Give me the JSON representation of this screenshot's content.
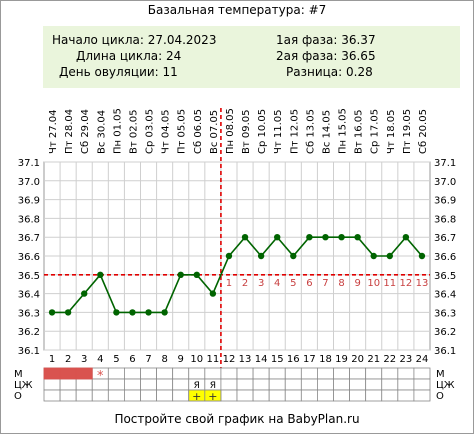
{
  "title": "Базальная температура: #7",
  "summary": {
    "cycle_start": "Начало цикла: 27.04.2023",
    "cycle_length": "Длина цикла: 24",
    "ovulation_day": "День овуляции: 11",
    "phase1": "1ая фаза: 36.37",
    "phase2": "2ая фаза: 36.65",
    "difference": "Разница: 0.28"
  },
  "footer": "Постройте свой график на BabyPlan.ru",
  "row_labels": {
    "m": "М",
    "cm": "ЦЖ",
    "o": "О"
  },
  "colors": {
    "line": "#006400",
    "cover_line": "#e00000",
    "menses": "#d9534f",
    "luteal_numbers": "#c84040",
    "info_bg": "#eaf5dc",
    "o_marks": "#ffff00"
  },
  "chart_data": {
    "type": "line",
    "ylim": [
      36.1,
      37.1
    ],
    "y_ticks": [
      "37.1",
      "37.0",
      "36.9",
      "36.8",
      "36.7",
      "36.6",
      "36.5",
      "36.4",
      "36.3",
      "36.2",
      "36.1"
    ],
    "x": [
      1,
      2,
      3,
      4,
      5,
      6,
      7,
      8,
      9,
      10,
      11,
      12,
      13,
      14,
      15,
      16,
      17,
      18,
      19,
      20,
      21,
      22,
      23,
      24
    ],
    "dates": [
      "Чт 27.04",
      "Пт 28.04",
      "Сб 29.04",
      "Вс 30.04",
      "Пн 01.05",
      "Вт 02.05",
      "Ср 03.05",
      "Чт 04.05",
      "Пт 05.05",
      "Сб 06.05",
      "Вс 07.05",
      "Пн 08.05",
      "Вт 09.05",
      "Ср 10.05",
      "Чт 11.05",
      "Пт 12.05",
      "Сб 13.05",
      "Вс 14.05",
      "Пн 15.05",
      "Вт 16.05",
      "Ср 17.05",
      "Чт 18.05",
      "Пт 19.05",
      "Сб 20.05"
    ],
    "series": [
      {
        "values": [
          36.3,
          36.3,
          36.4,
          36.5,
          36.3,
          36.3,
          36.3,
          36.3,
          36.5,
          36.5,
          36.4,
          36.6,
          36.7,
          36.6,
          36.7,
          36.6,
          36.7,
          36.7,
          36.7,
          36.7,
          36.6,
          36.6,
          36.7,
          36.6
        ]
      }
    ],
    "cover_line": 36.5,
    "ovulation_day": 11,
    "luteal_day_numbers": [
      "1",
      "2",
      "3",
      "4",
      "5",
      "6",
      "7",
      "8",
      "9",
      "10",
      "11",
      "12",
      "13"
    ],
    "menstruation_days": [
      1,
      2,
      3
    ],
    "menstruation_star": {
      "day": 4,
      "text": "*"
    },
    "cm_marks": [
      {
        "day": 10,
        "text": "Я"
      },
      {
        "day": 11,
        "text": "Я"
      }
    ],
    "o_marks": [
      {
        "day": 10,
        "text": "+"
      },
      {
        "day": 11,
        "text": "+"
      }
    ]
  }
}
